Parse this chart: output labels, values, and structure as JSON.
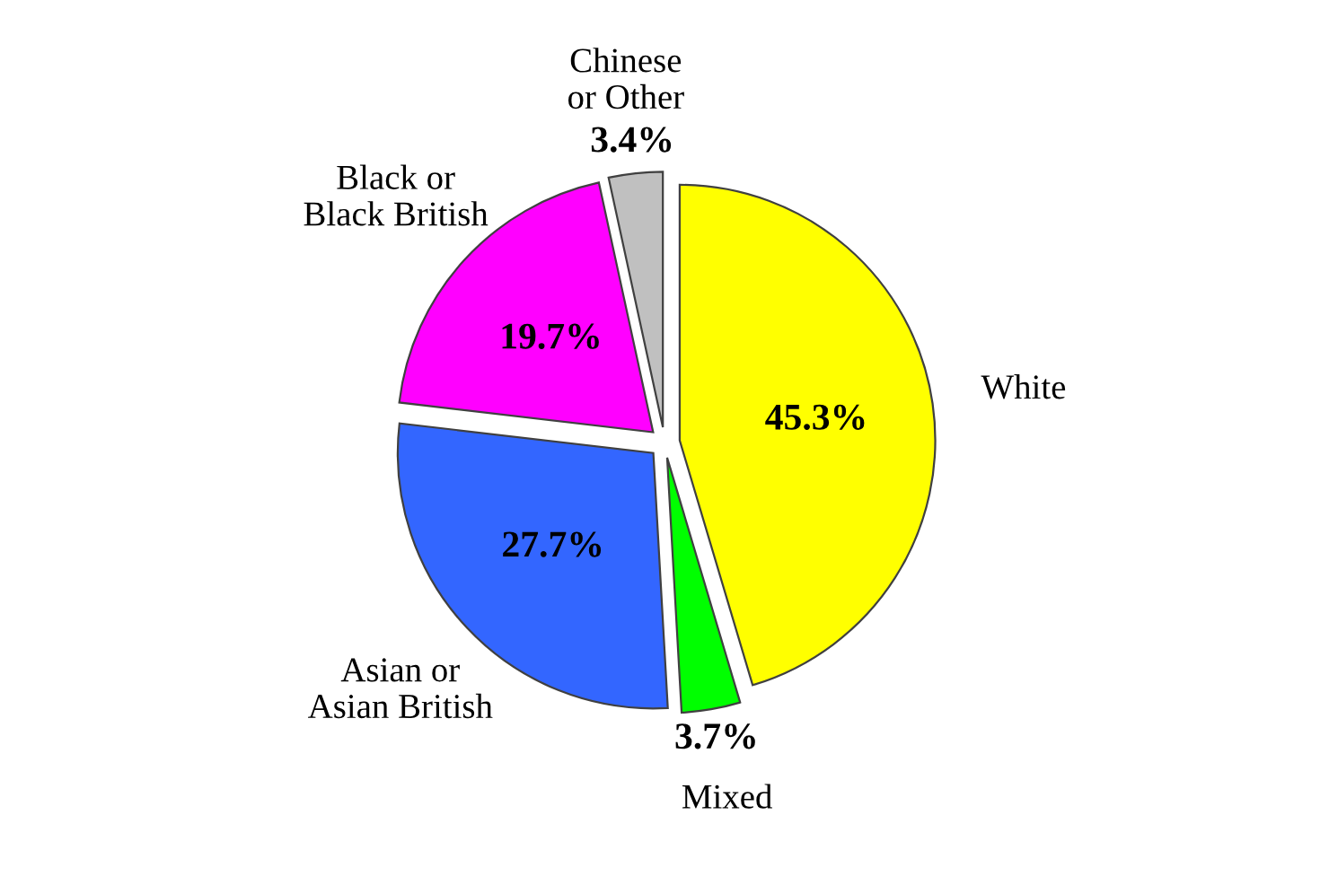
{
  "chart_data": {
    "type": "pie",
    "categories": [
      "White",
      "Mixed",
      "Asian or\nAsian British",
      "Black or\nBlack British",
      "Chinese\nor Other"
    ],
    "values": [
      45.3,
      3.7,
      27.7,
      19.7,
      3.4
    ],
    "value_labels": [
      "45.3%",
      "3.7%",
      "27.7%",
      "19.7%",
      "3.4%"
    ],
    "colors": [
      "#ffff00",
      "#00ff00",
      "#3366ff",
      "#ff00ff",
      "#c0c0c0"
    ],
    "legend": false
  }
}
